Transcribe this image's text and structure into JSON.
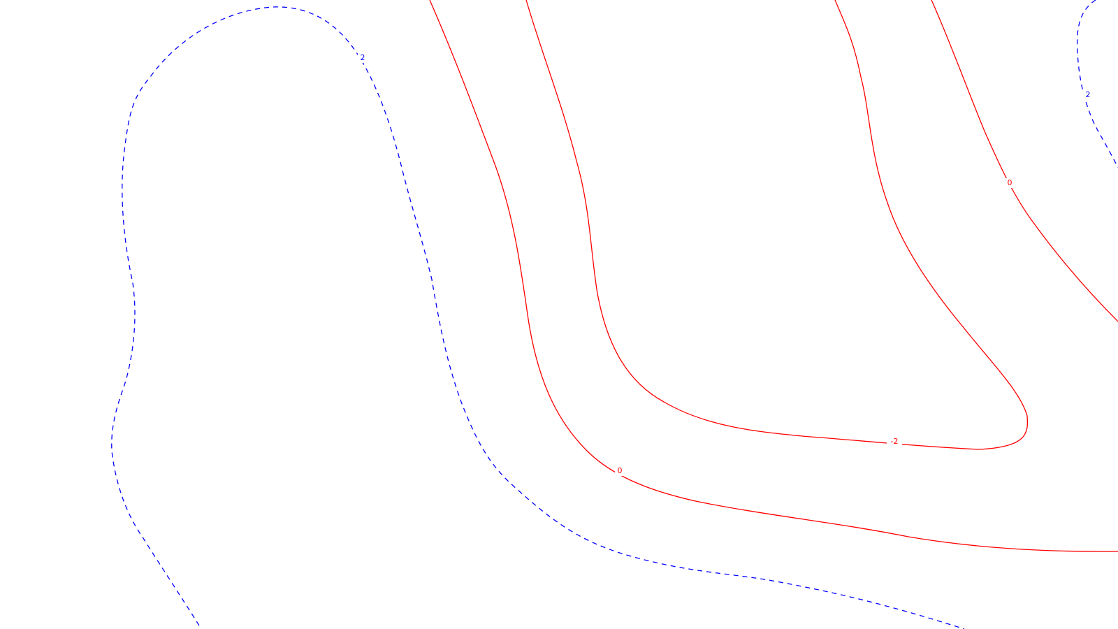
{
  "colors": {
    "background": "#ffffff",
    "positive": "#ff0000",
    "negative": "#0000ff"
  },
  "contours": [
    {
      "id": "blue-left",
      "level": "2",
      "style": "dashed",
      "color": "#0000ff"
    },
    {
      "id": "red-zero-lower",
      "level": "0",
      "style": "solid",
      "color": "#ff0000"
    },
    {
      "id": "red-neg-two",
      "level": "-2",
      "style": "solid",
      "color": "#ff0000"
    },
    {
      "id": "red-zero-upper",
      "level": "0",
      "style": "solid",
      "color": "#ff0000"
    },
    {
      "id": "blue-right",
      "level": "2",
      "style": "dashed",
      "color": "#0000ff"
    }
  ]
}
